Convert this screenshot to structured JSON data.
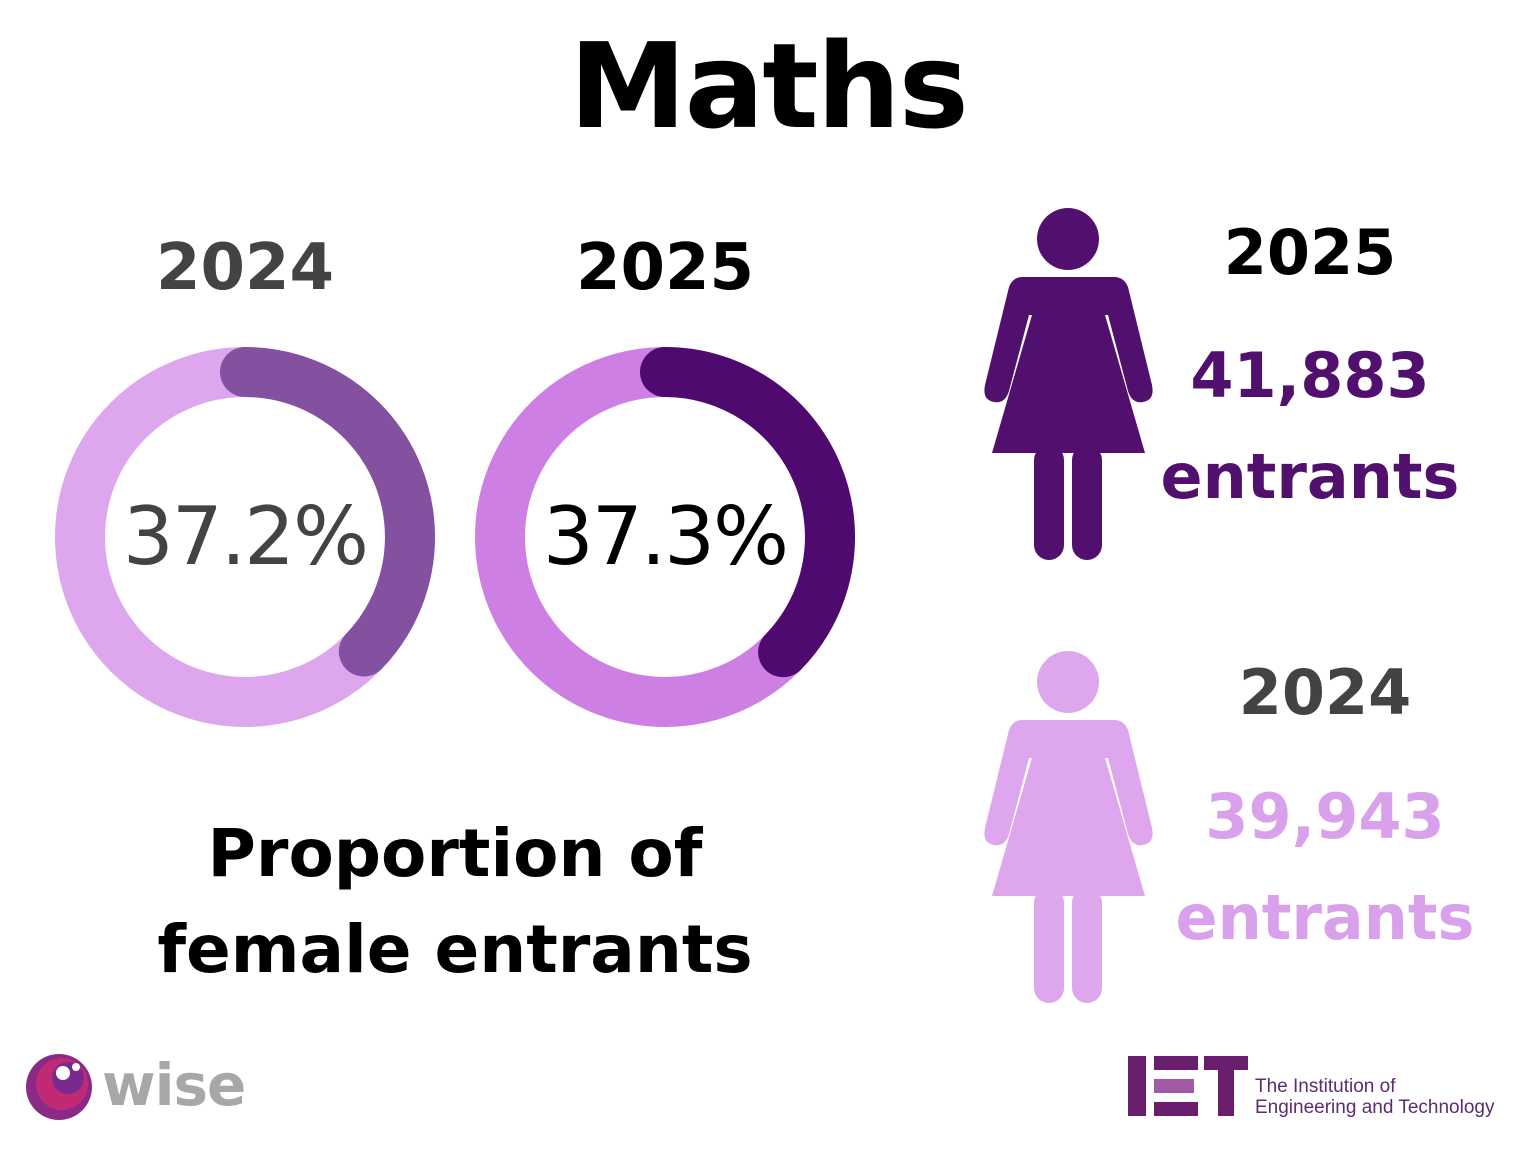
{
  "header": {
    "title": "Maths"
  },
  "colors": {
    "y2024_track": "#dea6ec",
    "y2024_arc": "#8450a0",
    "y2025_track": "#ce7fe4",
    "y2025_arc": "#4f0a70",
    "text_dark": "#000000",
    "text_grey": "#434343",
    "count_2025": "#52106e",
    "count_2024": "#d9a0ec",
    "figure_2025": "#52106e",
    "figure_2024": "#dea6ec"
  },
  "donuts": {
    "d2024": {
      "year": "2024",
      "label": "37.2%"
    },
    "d2025": {
      "year": "2025",
      "label": "37.3%"
    }
  },
  "caption": {
    "line1": "Proportion of",
    "line2": "female entrants"
  },
  "entrants": {
    "e2025": {
      "year": "2025",
      "count": "41,883",
      "unit": "entrants"
    },
    "e2024": {
      "year": "2024",
      "count": "39,943",
      "unit": "entrants"
    }
  },
  "logos": {
    "wise": {
      "text": "wise",
      "icon": "wise-logo-icon"
    },
    "iet": {
      "mark": "IET",
      "line1": "The Institution of",
      "line2": "Engineering and Technology"
    }
  },
  "chart_data": [
    {
      "type": "pie",
      "title": "2024",
      "values": [
        37.2,
        62.8
      ],
      "unit": "%",
      "center_label": "37.2%"
    },
    {
      "type": "pie",
      "title": "2025",
      "values": [
        37.3,
        62.7
      ],
      "unit": "%",
      "center_label": "37.3%"
    },
    {
      "type": "table",
      "rows": [
        {
          "year": "2025",
          "entrants": 41883
        },
        {
          "year": "2024",
          "entrants": 39943
        }
      ]
    }
  ]
}
